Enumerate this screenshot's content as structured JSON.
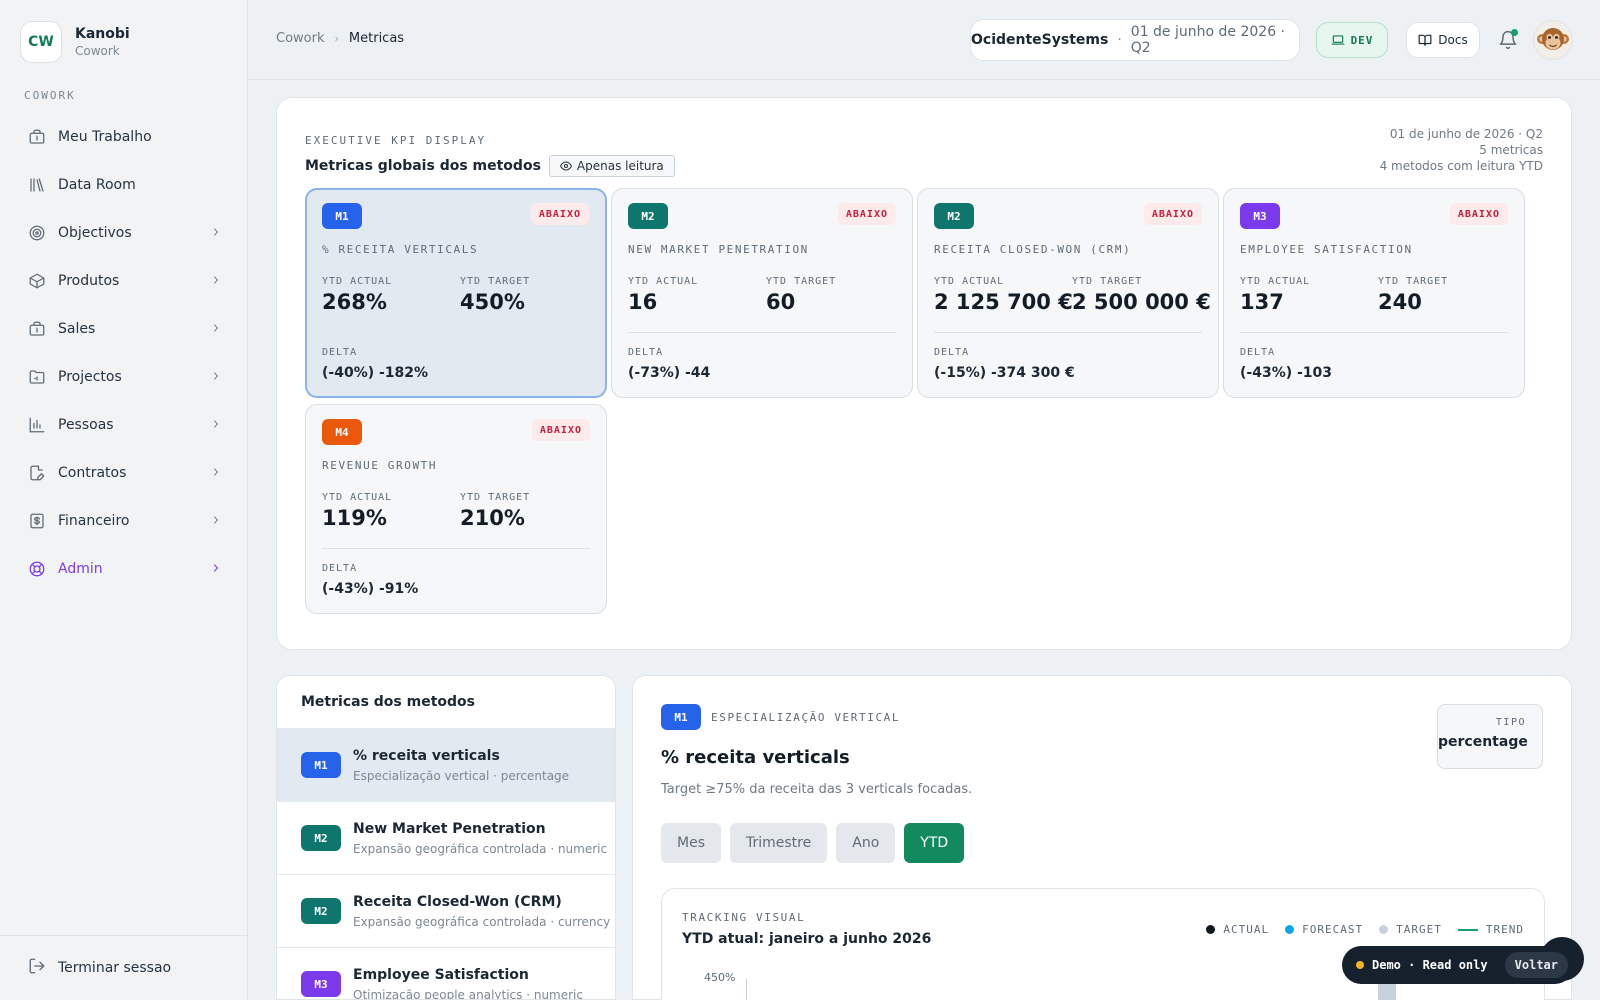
{
  "brand": {
    "initials": "CW",
    "name": "Kanobi",
    "sub": "Cowork"
  },
  "sidebar": {
    "section_label": "COWORK",
    "items": [
      {
        "label": "Meu Trabalho",
        "icon": "briefcase-icon",
        "chevron": false
      },
      {
        "label": "Data Room",
        "icon": "library-icon",
        "chevron": false
      },
      {
        "label": "Objectivos",
        "icon": "target-icon",
        "chevron": true
      },
      {
        "label": "Produtos",
        "icon": "box-icon",
        "chevron": true
      },
      {
        "label": "Sales",
        "icon": "briefcase-icon",
        "chevron": true
      },
      {
        "label": "Projectos",
        "icon": "folder-icon",
        "chevron": true
      },
      {
        "label": "Pessoas",
        "icon": "bar-chart-icon",
        "chevron": true
      },
      {
        "label": "Contratos",
        "icon": "file-edit-icon",
        "chevron": true
      },
      {
        "label": "Financeiro",
        "icon": "dollar-icon",
        "chevron": true
      },
      {
        "label": "Admin",
        "icon": "lifebuoy-icon",
        "chevron": true,
        "accent": "#7c3aed"
      }
    ],
    "logout_label": "Terminar sessao"
  },
  "topbar": {
    "breadcrumbs": [
      "Cowork",
      "Metricas"
    ],
    "org_name": "OcidenteSystems",
    "separator": "·",
    "org_date": "01 de junho de 2026 · Q2",
    "env_label": "DEV",
    "docs_label": "Docs",
    "has_notification": true
  },
  "kpi_panel": {
    "eyebrow": "EXECUTIVE KPI DISPLAY",
    "title": "Metricas globais dos metodos",
    "readonly_label": "Apenas leitura",
    "meta_date": "01 de junho de 2026 · Q2",
    "meta_count": "5 metricas",
    "meta_methods": "4 metodos com leitura YTD",
    "actual_label": "YTD ACTUAL",
    "target_label": "YTD TARGET",
    "delta_label": "DELTA",
    "cards": [
      {
        "badge": "M1",
        "color": "#2563eb",
        "status": "ABAIXO",
        "name": "% RECEITA VERTICALS",
        "actual": "268%",
        "target": "450%",
        "delta": "(-40%) -182%",
        "selected": true
      },
      {
        "badge": "M2",
        "color": "#0f766e",
        "status": "ABAIXO",
        "name": "NEW MARKET PENETRATION",
        "actual": "16",
        "target": "60",
        "delta": "(-73%) -44",
        "selected": false
      },
      {
        "badge": "M2",
        "color": "#0f766e",
        "status": "ABAIXO",
        "name": "RECEITA CLOSED-WON (CRM)",
        "actual": "2 125 700 €",
        "target": "2 500 000 €",
        "delta": "(-15%) -374 300 €",
        "selected": false
      },
      {
        "badge": "M3",
        "color": "#7c3aed",
        "status": "ABAIXO",
        "name": "EMPLOYEE SATISFACTION",
        "actual": "137",
        "target": "240",
        "delta": "(-43%) -103",
        "selected": false
      },
      {
        "badge": "M4",
        "color": "#ea580c",
        "status": "ABAIXO",
        "name": "REVENUE GROWTH",
        "actual": "119%",
        "target": "210%",
        "delta": "(-43%) -91%",
        "selected": false
      }
    ]
  },
  "methods": {
    "title": "Metricas dos metodos",
    "items": [
      {
        "badge": "M1",
        "color": "#2563eb",
        "name": "% receita verticals",
        "sub": "Especialização vertical · percentage",
        "selected": true
      },
      {
        "badge": "M2",
        "color": "#0f766e",
        "name": "New Market Penetration",
        "sub": "Expansão geográfica controlada · numeric",
        "selected": false
      },
      {
        "badge": "M2",
        "color": "#0f766e",
        "name": "Receita Closed-Won (CRM)",
        "sub": "Expansão geográfica controlada · currency",
        "selected": false
      },
      {
        "badge": "M3",
        "color": "#7c3aed",
        "name": "Employee Satisfaction",
        "sub": "Otimização people analytics · numeric",
        "selected": false
      }
    ]
  },
  "detail": {
    "badge": "M1",
    "eyebrow": "ESPECIALIZAÇÃO VERTICAL",
    "title": "% receita verticals",
    "description": "Target ≥75% da receita das 3 verticals focadas.",
    "tipo_label": "TIPO",
    "tipo_value": "percentage",
    "periods": [
      "Mes",
      "Trimestre",
      "Ano",
      "YTD"
    ],
    "active_period": "YTD",
    "tracking_eyebrow": "TRACKING VISUAL",
    "tracking_title": "YTD atual: janeiro a junho 2026",
    "legend": [
      {
        "label": "ACTUAL",
        "color": "#0f1720",
        "kind": "dot"
      },
      {
        "label": "FORECAST",
        "color": "#0ea5e9",
        "kind": "dot"
      },
      {
        "label": "TARGET",
        "color": "#c9d2dc",
        "kind": "dot"
      },
      {
        "label": "TREND",
        "color": "#10a36b",
        "kind": "line"
      }
    ],
    "y_top_label": "450%"
  },
  "demo": {
    "label": "Demo · Read only",
    "back_label": "Voltar"
  }
}
